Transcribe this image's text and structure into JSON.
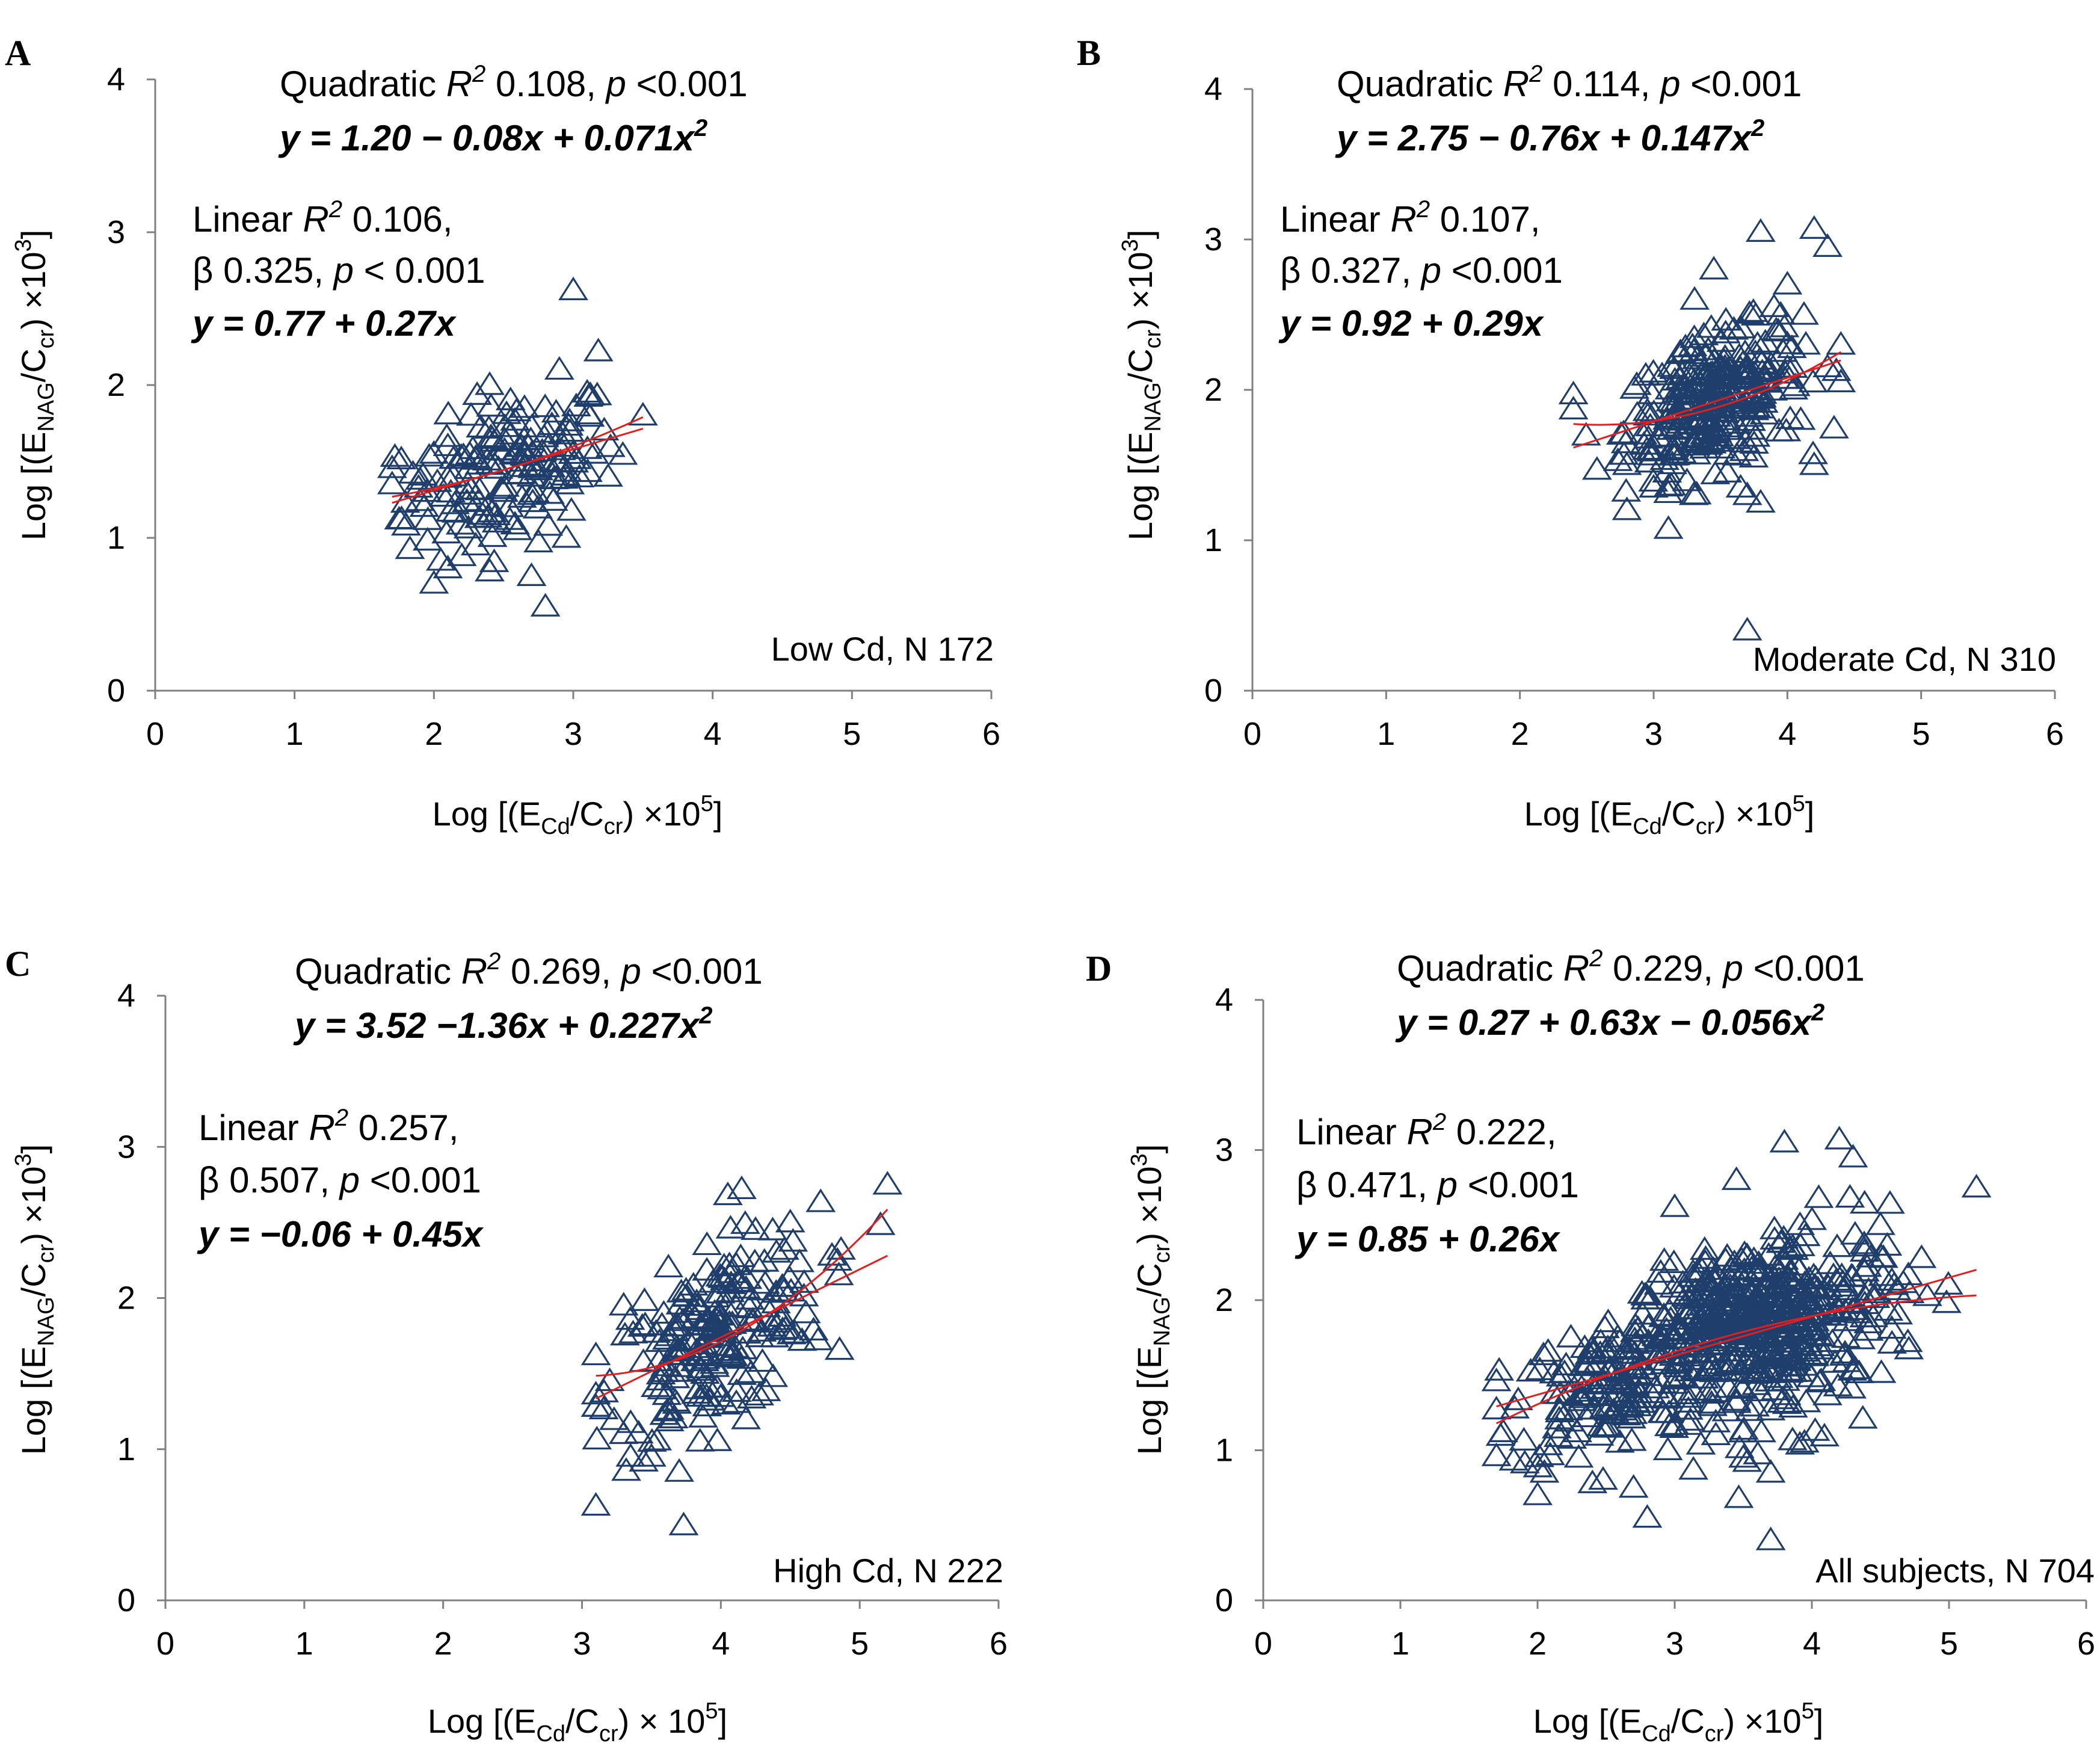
{
  "colors": {
    "marker": "#1F3E6B",
    "fit_line": "#E02020",
    "axis": "#808080"
  },
  "chart_data": [
    {
      "panel": "A",
      "type": "scatter",
      "xlim": [
        0,
        6
      ],
      "ylim": [
        0,
        4
      ],
      "xticks": [
        "0",
        "1",
        "2",
        "3",
        "4",
        "5",
        "6"
      ],
      "yticks": [
        "0",
        "1",
        "2",
        "3",
        "4"
      ],
      "xlabel": {
        "pre": "Log [(E",
        "sub1": "Cd",
        "mid": "/C",
        "sub2": "cr",
        "post": ") ×10",
        "sup": "5",
        "end": "]"
      },
      "ylabel": {
        "pre": "Log [(E",
        "sub1": "NAG",
        "mid": "/C",
        "sub2": "cr",
        "post": ") ×10",
        "sup": "3",
        "end": "]"
      },
      "quad_stats": {
        "pre": "Quadratic ",
        "r": "R",
        "r_sup": "2",
        "val": " 0.108, ",
        "p": "p",
        "tail": " <0.001"
      },
      "quad_eq": {
        "text": "y = 1.20 − 0.08x + 0.071x",
        "sup": "2"
      },
      "lin_stats": {
        "pre": "Linear ",
        "r": "R",
        "r_sup": "2",
        "val": " 0.106,"
      },
      "lin_beta": {
        "pre": "β 0.325, ",
        "p": "p",
        "tail": " <  0.001"
      },
      "lin_eq": "y = 0.77 + 0.27x",
      "group_label": "Low Cd, N 172",
      "x_range": [
        1.7,
        3.5
      ],
      "linear": {
        "a": 0.77,
        "b": 0.27
      },
      "quadratic": {
        "a": 1.2,
        "b": -0.08,
        "c": 0.071
      },
      "n": 172,
      "points": [
        [
          1.72,
          1.53
        ],
        [
          1.7,
          1.35
        ],
        [
          1.75,
          1.12
        ],
        [
          1.8,
          1.08
        ],
        [
          1.85,
          1.42
        ],
        [
          1.9,
          1.38
        ],
        [
          1.95,
          1.3
        ],
        [
          2.0,
          1.55
        ],
        [
          2.0,
          0.7
        ],
        [
          2.05,
          0.85
        ],
        [
          2.1,
          0.8
        ],
        [
          2.2,
          0.88
        ],
        [
          2.3,
          0.95
        ],
        [
          2.4,
          0.78
        ],
        [
          2.45,
          1.1
        ],
        [
          2.6,
          1.05
        ],
        [
          2.7,
          0.75
        ],
        [
          2.75,
          0.97
        ],
        [
          2.8,
          0.55
        ],
        [
          2.95,
          1.0
        ],
        [
          3.0,
          2.62
        ],
        [
          3.18,
          2.22
        ],
        [
          3.15,
          1.55
        ],
        [
          3.25,
          1.4
        ],
        [
          3.5,
          1.8
        ],
        [
          3.1,
          1.95
        ],
        [
          2.9,
          2.1
        ],
        [
          2.4,
          2.0
        ],
        [
          2.55,
          1.9
        ],
        [
          2.65,
          1.85
        ],
        [
          2.35,
          1.15
        ],
        [
          2.5,
          1.3
        ],
        [
          2.15,
          1.22
        ],
        [
          2.25,
          1.45
        ],
        [
          2.1,
          1.6
        ]
      ]
    },
    {
      "panel": "B",
      "type": "scatter",
      "xlim": [
        0,
        6
      ],
      "ylim": [
        0,
        4
      ],
      "xticks": [
        "0",
        "1",
        "2",
        "3",
        "4",
        "5",
        "6"
      ],
      "yticks": [
        "0",
        "1",
        "2",
        "3",
        "4"
      ],
      "xlabel": {
        "pre": "Log [(E",
        "sub1": "Cd",
        "mid": "/C",
        "sub2": "cr",
        "post": ") ×10",
        "sup": "5",
        "end": "]"
      },
      "ylabel": {
        "pre": "Log [(E",
        "sub1": "NAG",
        "mid": "/C",
        "sub2": "cr",
        "post": ") ×10",
        "sup": "3",
        "end": "]"
      },
      "quad_stats": {
        "pre": "Quadratic ",
        "r": "R",
        "r_sup": "2",
        "val": " 0.114, ",
        "p": "p",
        "tail": " <0.001"
      },
      "quad_eq": {
        "text": "y = 2.75 − 0.76x + 0.147x",
        "sup": "2"
      },
      "lin_stats": {
        "pre": "Linear ",
        "r": "R",
        "r_sup": "2",
        "val": " 0.107,"
      },
      "lin_beta": {
        "pre": "β 0.327, ",
        "p": "p",
        "tail": " <0.001"
      },
      "lin_eq": "y = 0.92 + 0.29x",
      "group_label": "Moderate Cd, N 310",
      "x_range": [
        2.4,
        4.4
      ],
      "linear": {
        "a": 0.92,
        "b": 0.29
      },
      "quadratic": {
        "a": 2.75,
        "b": -0.76,
        "c": 0.147
      },
      "n": 310,
      "points": [
        [
          2.4,
          1.97
        ],
        [
          2.8,
          1.2
        ],
        [
          2.8,
          1.5
        ],
        [
          3.0,
          1.35
        ],
        [
          3.1,
          1.45
        ],
        [
          3.3,
          1.3
        ],
        [
          3.45,
          2.8
        ],
        [
          3.7,
          0.4
        ],
        [
          3.7,
          1.3
        ],
        [
          3.8,
          1.25
        ],
        [
          3.8,
          3.05
        ],
        [
          3.95,
          2.5
        ],
        [
          4.0,
          2.7
        ],
        [
          4.2,
          3.07
        ],
        [
          4.3,
          2.95
        ],
        [
          4.2,
          1.5
        ],
        [
          4.4,
          2.3
        ],
        [
          4.4,
          2.05
        ],
        [
          4.3,
          2.15
        ],
        [
          3.9,
          2.55
        ],
        [
          3.6,
          2.4
        ],
        [
          3.2,
          2.25
        ],
        [
          3.55,
          1.45
        ],
        [
          3.65,
          1.35
        ],
        [
          4.1,
          1.8
        ]
      ]
    },
    {
      "panel": "C",
      "type": "scatter",
      "xlim": [
        0,
        6
      ],
      "ylim": [
        0,
        4
      ],
      "xticks": [
        "0",
        "1",
        "2",
        "3",
        "4",
        "5",
        "6"
      ],
      "yticks": [
        "0",
        "1",
        "2",
        "3",
        "4"
      ],
      "xlabel": {
        "pre": "Log [(E",
        "sub1": "Cd",
        "mid": "/C",
        "sub2": "cr",
        "post": ") × 10",
        "sup": "5",
        "end": "]"
      },
      "ylabel": {
        "pre": "Log [(E",
        "sub1": "NAG",
        "mid": "/C",
        "sub2": "cr",
        "post": ") ×10",
        "sup": "3",
        "end": "]"
      },
      "quad_stats": {
        "pre": "Quadratic ",
        "r": "R",
        "r_sup": "2",
        "val": " 0.269, ",
        "p": "p",
        "tail": " <0.001"
      },
      "quad_eq": {
        "text": "y = 3.52 −1.36x + 0.227x",
        "sup": "2"
      },
      "lin_stats": {
        "pre": "Linear ",
        "r": "R",
        "r_sup": "2",
        "val": " 0.257,"
      },
      "lin_beta": {
        "pre": "β 0.507, ",
        "p": "p",
        "tail": " <0.001"
      },
      "lin_eq": "y = −0.06 + 0.45x",
      "group_label": "High Cd, N 222",
      "x_range": [
        3.1,
        5.2
      ],
      "linear": {
        "a": -0.06,
        "b": 0.45
      },
      "quadratic": {
        "a": 3.52,
        "b": -1.36,
        "c": 0.227
      },
      "n": 222,
      "points": [
        [
          3.1,
          1.28
        ],
        [
          3.2,
          1.45
        ],
        [
          3.3,
          1.1
        ],
        [
          3.35,
          0.95
        ],
        [
          3.5,
          0.95
        ],
        [
          3.7,
          0.85
        ],
        [
          3.85,
          1.05
        ],
        [
          3.3,
          1.95
        ],
        [
          3.45,
          1.98
        ],
        [
          4.05,
          2.68
        ],
        [
          4.15,
          2.72
        ],
        [
          4.25,
          2.45
        ],
        [
          4.5,
          2.5
        ],
        [
          4.6,
          2.1
        ],
        [
          4.7,
          1.72
        ],
        [
          4.8,
          2.28
        ],
        [
          5.2,
          2.75
        ],
        [
          4.85,
          2.15
        ],
        [
          4.4,
          2.3
        ],
        [
          3.9,
          2.35
        ]
      ]
    },
    {
      "panel": "D",
      "type": "scatter",
      "xlim": [
        0,
        6
      ],
      "ylim": [
        0,
        4
      ],
      "xticks": [
        "0",
        "1",
        "2",
        "3",
        "4",
        "5",
        "6"
      ],
      "yticks": [
        "0",
        "1",
        "2",
        "3",
        "4"
      ],
      "xlabel": {
        "pre": "Log [(E",
        "sub1": "Cd",
        "mid": "/C",
        "sub2": "cr",
        "post": ") ×10",
        "sup": "5",
        "end": "]"
      },
      "ylabel": {
        "pre": "Log [(E",
        "sub1": "NAG",
        "mid": "/C",
        "sub2": "cr",
        "post": ") ×10",
        "sup": "3",
        "end": "]"
      },
      "quad_stats": {
        "pre": "Quadratic ",
        "r": "R",
        "r_sup": "2",
        "val": " 0.229, ",
        "p": "p",
        "tail": " <0.001"
      },
      "quad_eq": {
        "text": "y = 0.27 + 0.63x − 0.056x",
        "sup": "2"
      },
      "lin_stats": {
        "pre": "Linear ",
        "r": "R",
        "r_sup": "2",
        "val": " 0.222,"
      },
      "lin_beta": {
        "pre": "β 0.471, ",
        "p": "p",
        "tail": " <0.001"
      },
      "lin_eq": "y = 0.85 + 0.26x",
      "group_label": "All subjects, N 704",
      "x_range": [
        1.7,
        5.2
      ],
      "linear": {
        "a": 0.85,
        "b": 0.26
      },
      "quadratic": {
        "a": 0.27,
        "b": 0.63,
        "c": -0.056
      },
      "n": 704,
      "points": [
        [
          1.72,
          1.53
        ],
        [
          1.75,
          1.12
        ],
        [
          2.0,
          0.7
        ],
        [
          2.05,
          0.85
        ],
        [
          2.3,
          0.95
        ],
        [
          2.4,
          0.78
        ],
        [
          2.7,
          0.75
        ],
        [
          2.8,
          0.55
        ],
        [
          3.0,
          2.62
        ],
        [
          3.7,
          0.4
        ],
        [
          3.7,
          0.85
        ],
        [
          3.8,
          3.05
        ],
        [
          4.2,
          3.07
        ],
        [
          4.3,
          2.95
        ],
        [
          5.2,
          2.75
        ],
        [
          4.8,
          2.28
        ],
        [
          4.7,
          1.72
        ],
        [
          3.45,
          2.8
        ],
        [
          4.05,
          2.68
        ],
        [
          3.5,
          0.95
        ],
        [
          3.3,
          1.1
        ],
        [
          2.95,
          1.0
        ],
        [
          2.6,
          1.05
        ],
        [
          4.6,
          2.1
        ],
        [
          4.5,
          2.5
        ]
      ]
    }
  ]
}
